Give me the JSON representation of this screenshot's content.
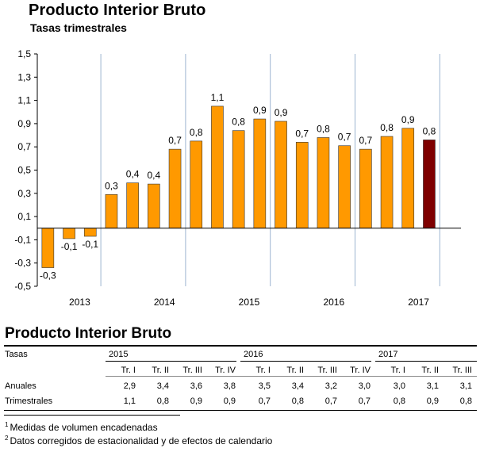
{
  "chart_data": {
    "type": "bar",
    "title": "Producto Interior Bruto",
    "subtitle": "Tasas trimestrales",
    "ylim": [
      -0.5,
      1.5
    ],
    "yticks": [
      "1,5",
      "1,3",
      "1,1",
      "0,9",
      "0,7",
      "0,5",
      "0,3",
      "0,1",
      "-0,1",
      "-0,3",
      "-0,5"
    ],
    "ytick_values": [
      1.5,
      1.3,
      1.1,
      0.9,
      0.7,
      0.5,
      0.3,
      0.1,
      -0.1,
      -0.3,
      -0.5
    ],
    "year_labels": [
      "2013",
      "2014",
      "2015",
      "2016",
      "2017"
    ],
    "values": [
      -0.34,
      -0.09,
      -0.07,
      0.29,
      0.39,
      0.38,
      0.68,
      0.75,
      1.05,
      0.84,
      0.94,
      0.92,
      0.74,
      0.78,
      0.71,
      0.68,
      0.79,
      0.86,
      0.76
    ],
    "labels": [
      "-0,3",
      "-0,1",
      "-0,1",
      "0,3",
      "0,4",
      "0,4",
      "0,7",
      "0,8",
      "1,1",
      "0,8",
      "0,9",
      "0,9",
      "0,7",
      "0,8",
      "0,7",
      "0,7",
      "0,8",
      "0,9",
      "0,8"
    ],
    "color_default": "#FF9900",
    "color_highlight": "#7F0000",
    "highlight_index": 18
  },
  "table": {
    "title": "Producto Interior Bruto",
    "header_label": "Tasas",
    "years": [
      "2015",
      "2016",
      "2017"
    ],
    "quarters": [
      "Tr. I",
      "Tr. II",
      "Tr. III",
      "Tr. IV",
      "Tr. I",
      "Tr. II",
      "Tr. III",
      "Tr. IV",
      "Tr. I",
      "Tr. II",
      "Tr. III"
    ],
    "rows": [
      {
        "label": "Anuales",
        "values": [
          "2,9",
          "3,4",
          "3,6",
          "3,8",
          "3,5",
          "3,4",
          "3,2",
          "3,0",
          "3,0",
          "3,1",
          "3,1"
        ]
      },
      {
        "label": "Trimestrales",
        "values": [
          "1,1",
          "0,8",
          "0,9",
          "0,9",
          "0,7",
          "0,8",
          "0,7",
          "0,7",
          "0,8",
          "0,9",
          "0,8"
        ]
      }
    ]
  },
  "notes": [
    {
      "marker": "1",
      "text": "Medidas de volumen encadenadas"
    },
    {
      "marker": "2",
      "text": "Datos corregidos de estacionalidad y de efectos de calendario"
    }
  ]
}
